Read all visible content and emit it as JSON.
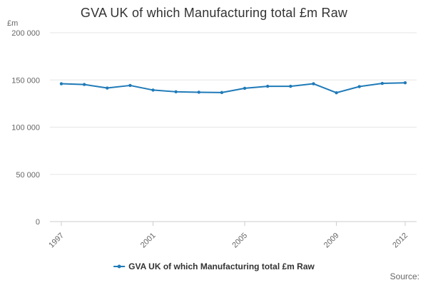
{
  "chart_data": {
    "type": "line",
    "title": "GVA UK of which Manufacturing total £m Raw",
    "ylabel": "£m",
    "xlabel": "",
    "x": [
      1997,
      1998,
      1999,
      2000,
      2001,
      2002,
      2003,
      2004,
      2005,
      2006,
      2007,
      2008,
      2009,
      2010,
      2011,
      2012
    ],
    "x_tick_labels": [
      "1997",
      "2001",
      "2005",
      "2009",
      "2012"
    ],
    "x_tick_values": [
      1997,
      2001,
      2005,
      2009,
      2012
    ],
    "y_tick_labels": [
      "0",
      "50 000",
      "100 000",
      "150 000",
      "200 000"
    ],
    "y_tick_values": [
      0,
      50000,
      100000,
      150000,
      200000
    ],
    "ylim": [
      0,
      200000
    ],
    "series": [
      {
        "name": "GVA UK of which Manufacturing total £m Raw",
        "values": [
          146000,
          145200,
          141500,
          144200,
          139300,
          137500,
          137000,
          136700,
          141200,
          143300,
          143300,
          146000,
          136500,
          143000,
          146400,
          147000
        ],
        "color": "#1f7ab8"
      }
    ],
    "grid": true,
    "legend_position": "bottom-center",
    "source_label": "Source:"
  }
}
